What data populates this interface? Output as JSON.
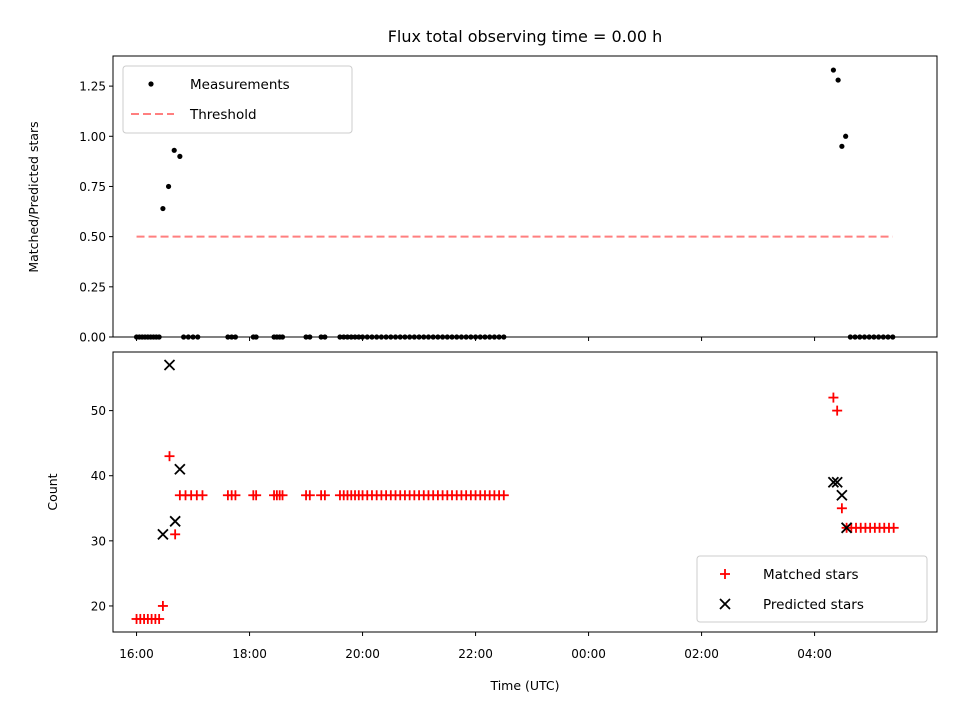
{
  "chart_data": [
    {
      "type": "scatter",
      "title": "Flux total observing time = 0.00 h",
      "xlabel": "",
      "ylabel": "Matched/Predicted stars",
      "x_unit": "UTC time",
      "xlim": [
        "16:00",
        "05:25 (+1 day)"
      ],
      "ylim": [
        0,
        1.4
      ],
      "yticks": [
        "0.00",
        "0.25",
        "0.50",
        "0.75",
        "1.00",
        "1.25"
      ],
      "legend_position": "top-left",
      "series": [
        {
          "name": "Measurements",
          "marker": "dot",
          "color": "#000000",
          "points": [
            [
              "16:00",
              0
            ],
            [
              "16:03",
              0
            ],
            [
              "16:06",
              0
            ],
            [
              "16:09",
              0
            ],
            [
              "16:12",
              0
            ],
            [
              "16:15",
              0
            ],
            [
              "16:18",
              0
            ],
            [
              "16:21",
              0
            ],
            [
              "16:24",
              0
            ],
            [
              "16:28",
              0.64
            ],
            [
              "16:34",
              0.75
            ],
            [
              "16:40",
              0.93
            ],
            [
              "16:46",
              0.9
            ],
            [
              "16:50",
              0
            ],
            [
              "16:55",
              0
            ],
            [
              "17:00",
              0
            ],
            [
              "17:05",
              0
            ],
            [
              "17:37",
              0
            ],
            [
              "17:41",
              0
            ],
            [
              "17:45",
              0
            ],
            [
              "18:04",
              0
            ],
            [
              "18:07",
              0
            ],
            [
              "18:26",
              0
            ],
            [
              "18:29",
              0
            ],
            [
              "18:32",
              0
            ],
            [
              "18:35",
              0
            ],
            [
              "19:00",
              0
            ],
            [
              "19:04",
              0
            ],
            [
              "19:16",
              0
            ],
            [
              "19:20",
              0
            ],
            [
              "19:36",
              0
            ],
            [
              "19:40",
              0
            ],
            [
              "19:44",
              0
            ],
            [
              "19:48",
              0
            ],
            [
              "19:52",
              0
            ],
            [
              "19:56",
              0
            ],
            [
              "20:00",
              0
            ],
            [
              "20:05",
              0
            ],
            [
              "20:10",
              0
            ],
            [
              "20:15",
              0
            ],
            [
              "20:20",
              0
            ],
            [
              "20:25",
              0
            ],
            [
              "20:30",
              0
            ],
            [
              "20:35",
              0
            ],
            [
              "20:40",
              0
            ],
            [
              "20:45",
              0
            ],
            [
              "20:50",
              0
            ],
            [
              "20:55",
              0
            ],
            [
              "21:00",
              0
            ],
            [
              "21:05",
              0
            ],
            [
              "21:10",
              0
            ],
            [
              "21:15",
              0
            ],
            [
              "21:20",
              0
            ],
            [
              "21:25",
              0
            ],
            [
              "21:30",
              0
            ],
            [
              "21:35",
              0
            ],
            [
              "21:40",
              0
            ],
            [
              "21:45",
              0
            ],
            [
              "21:50",
              0
            ],
            [
              "21:55",
              0
            ],
            [
              "22:00",
              0
            ],
            [
              "22:05",
              0
            ],
            [
              "22:10",
              0
            ],
            [
              "22:15",
              0
            ],
            [
              "22:20",
              0
            ],
            [
              "22:25",
              0
            ],
            [
              "22:30",
              0
            ],
            [
              "04:20",
              1.33
            ],
            [
              "04:25",
              1.28
            ],
            [
              "04:29",
              0.95
            ],
            [
              "04:33",
              1.0
            ],
            [
              "04:38",
              0
            ],
            [
              "04:43",
              0
            ],
            [
              "04:48",
              0
            ],
            [
              "04:53",
              0
            ],
            [
              "04:58",
              0
            ],
            [
              "05:03",
              0
            ],
            [
              "05:08",
              0
            ],
            [
              "05:13",
              0
            ],
            [
              "05:18",
              0
            ],
            [
              "05:23",
              0
            ]
          ]
        },
        {
          "name": "Threshold",
          "type": "line",
          "style": "dashed",
          "color": "#ff7f7f",
          "points": [
            [
              "16:00",
              0.5
            ],
            [
              "05:23",
              0.5
            ]
          ]
        }
      ]
    },
    {
      "type": "scatter",
      "title": "",
      "xlabel": "Time (UTC)",
      "ylabel": "Count",
      "x_unit": "UTC time",
      "xlim": [
        "15:35",
        "06:10 (+1 day)"
      ],
      "ylim": [
        16,
        59
      ],
      "xticks": [
        "16:00",
        "18:00",
        "20:00",
        "22:00",
        "00:00",
        "02:00",
        "04:00"
      ],
      "yticks": [
        "20",
        "30",
        "40",
        "50"
      ],
      "legend_position": "bottom-right",
      "series": [
        {
          "name": "Matched stars",
          "marker": "plus",
          "color": "#ff0000",
          "points": [
            [
              "16:00",
              18
            ],
            [
              "16:04",
              18
            ],
            [
              "16:08",
              18
            ],
            [
              "16:12",
              18
            ],
            [
              "16:16",
              18
            ],
            [
              "16:20",
              18
            ],
            [
              "16:24",
              18
            ],
            [
              "16:28",
              20
            ],
            [
              "16:35",
              43
            ],
            [
              "16:41",
              31
            ],
            [
              "16:46",
              37
            ],
            [
              "16:52",
              37
            ],
            [
              "16:58",
              37
            ],
            [
              "17:04",
              37
            ],
            [
              "17:10",
              37
            ],
            [
              "17:37",
              37
            ],
            [
              "17:41",
              37
            ],
            [
              "17:45",
              37
            ],
            [
              "18:04",
              37
            ],
            [
              "18:07",
              37
            ],
            [
              "18:26",
              37
            ],
            [
              "18:29",
              37
            ],
            [
              "18:32",
              37
            ],
            [
              "18:35",
              37
            ],
            [
              "19:00",
              37
            ],
            [
              "19:04",
              37
            ],
            [
              "19:16",
              37
            ],
            [
              "19:20",
              37
            ],
            [
              "19:36",
              37
            ],
            [
              "19:40",
              37
            ],
            [
              "19:44",
              37
            ],
            [
              "19:48",
              37
            ],
            [
              "19:52",
              37
            ],
            [
              "19:56",
              37
            ],
            [
              "20:00",
              37
            ],
            [
              "20:05",
              37
            ],
            [
              "20:10",
              37
            ],
            [
              "20:15",
              37
            ],
            [
              "20:20",
              37
            ],
            [
              "20:25",
              37
            ],
            [
              "20:30",
              37
            ],
            [
              "20:35",
              37
            ],
            [
              "20:40",
              37
            ],
            [
              "20:45",
              37
            ],
            [
              "20:50",
              37
            ],
            [
              "20:55",
              37
            ],
            [
              "21:00",
              37
            ],
            [
              "21:05",
              37
            ],
            [
              "21:10",
              37
            ],
            [
              "21:15",
              37
            ],
            [
              "21:20",
              37
            ],
            [
              "21:25",
              37
            ],
            [
              "21:30",
              37
            ],
            [
              "21:35",
              37
            ],
            [
              "21:40",
              37
            ],
            [
              "21:45",
              37
            ],
            [
              "21:50",
              37
            ],
            [
              "21:55",
              37
            ],
            [
              "22:00",
              37
            ],
            [
              "22:05",
              37
            ],
            [
              "22:10",
              37
            ],
            [
              "22:15",
              37
            ],
            [
              "22:20",
              37
            ],
            [
              "22:25",
              37
            ],
            [
              "22:30",
              37
            ],
            [
              "04:20",
              52
            ],
            [
              "04:24",
              50
            ],
            [
              "04:29",
              35
            ],
            [
              "04:34",
              32
            ],
            [
              "04:39",
              32
            ],
            [
              "04:44",
              32
            ],
            [
              "04:49",
              32
            ],
            [
              "04:54",
              32
            ],
            [
              "04:59",
              32
            ],
            [
              "05:04",
              32
            ],
            [
              "05:09",
              32
            ],
            [
              "05:14",
              32
            ],
            [
              "05:19",
              32
            ],
            [
              "05:24",
              32
            ]
          ]
        },
        {
          "name": "Predicted stars",
          "marker": "x",
          "color": "#000000",
          "points": [
            [
              "16:28",
              31
            ],
            [
              "16:35",
              57
            ],
            [
              "16:41",
              33
            ],
            [
              "16:46",
              41
            ],
            [
              "04:20",
              39
            ],
            [
              "04:24",
              39
            ],
            [
              "04:29",
              37
            ],
            [
              "04:34",
              32
            ]
          ]
        }
      ]
    }
  ]
}
